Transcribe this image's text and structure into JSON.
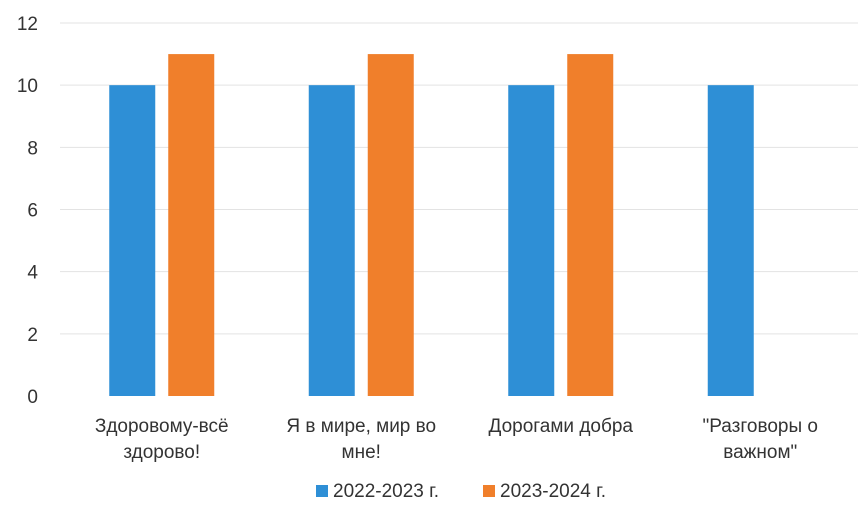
{
  "chart_data": {
    "type": "bar",
    "categories": [
      [
        "Здоровому-всё",
        "здорово!"
      ],
      [
        "Я в мире, мир во",
        "мне!"
      ],
      [
        "Дорогами добра"
      ],
      [
        "\"Разговоры о",
        "важном\""
      ]
    ],
    "series": [
      {
        "name": "2022-2023 г.",
        "color": "#2e8fd6",
        "values": [
          10.0,
          10.0,
          10.0,
          10.0
        ]
      },
      {
        "name": "2023-2024 г.",
        "color": "#f07f2b",
        "values": [
          11.0,
          11.0,
          11.0,
          null
        ]
      }
    ],
    "ylim": [
      0,
      12
    ],
    "yticks": [
      0,
      2,
      4,
      6,
      8,
      10,
      12
    ],
    "grid": true,
    "legend_position": "bottom-center",
    "title": "",
    "xlabel": "",
    "ylabel": ""
  }
}
